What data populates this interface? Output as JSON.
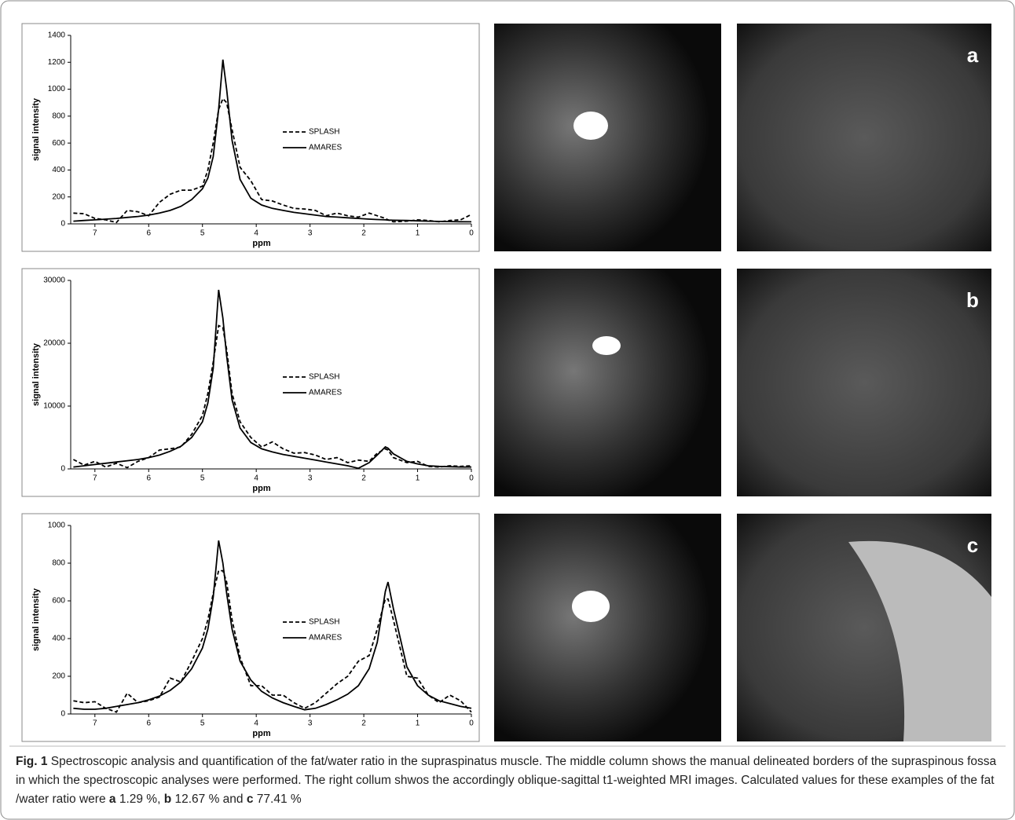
{
  "chart_data": [
    {
      "type": "line",
      "x_label": "ppm",
      "y_label": "signal intensity",
      "x": [
        7.4,
        7.2,
        7.0,
        6.8,
        6.6,
        6.4,
        6.2,
        6.0,
        5.8,
        5.6,
        5.4,
        5.2,
        5.0,
        4.9,
        4.8,
        4.7,
        4.62,
        4.55,
        4.45,
        4.3,
        4.1,
        3.9,
        3.7,
        3.5,
        3.3,
        3.1,
        2.9,
        2.7,
        2.5,
        2.3,
        2.1,
        1.9,
        1.75,
        1.6,
        1.55,
        1.45,
        1.2,
        1.0,
        0.8,
        0.6,
        0.4,
        0.2,
        0.0
      ],
      "xlim": [
        7.45,
        0
      ],
      "xticks": [
        7,
        6,
        5,
        4,
        3,
        2,
        1,
        0
      ],
      "ylim": [
        0,
        1400
      ],
      "yticks": [
        0,
        200,
        400,
        600,
        800,
        1000,
        1200,
        1400
      ],
      "series": [
        {
          "name": "SPLASH",
          "color": "#000000",
          "style": "dashed",
          "values": [
            80,
            75,
            40,
            30,
            10,
            100,
            90,
            60,
            160,
            220,
            250,
            250,
            280,
            400,
            600,
            850,
            930,
            900,
            700,
            420,
            320,
            180,
            170,
            140,
            115,
            110,
            100,
            60,
            80,
            60,
            50,
            80,
            60,
            40,
            30,
            15,
            20,
            30,
            25,
            15,
            25,
            30,
            70
          ]
        },
        {
          "name": "AMARES",
          "color": "#000000",
          "style": "solid",
          "values": [
            20,
            25,
            30,
            35,
            40,
            48,
            55,
            65,
            80,
            100,
            130,
            180,
            260,
            340,
            500,
            850,
            1220,
            1000,
            620,
            330,
            190,
            140,
            115,
            100,
            85,
            75,
            65,
            55,
            50,
            45,
            40,
            35,
            32,
            30,
            28,
            27,
            25,
            22,
            20,
            18,
            17,
            16,
            15
          ]
        }
      ]
    },
    {
      "type": "line",
      "x_label": "ppm",
      "y_label": "signal intensity",
      "x": [
        7.4,
        7.2,
        7.0,
        6.8,
        6.6,
        6.4,
        6.2,
        6.0,
        5.8,
        5.6,
        5.4,
        5.2,
        5.0,
        4.9,
        4.8,
        4.7,
        4.62,
        4.55,
        4.45,
        4.3,
        4.1,
        3.9,
        3.7,
        3.5,
        3.3,
        3.1,
        2.9,
        2.7,
        2.5,
        2.3,
        2.1,
        1.9,
        1.75,
        1.6,
        1.55,
        1.45,
        1.2,
        1.0,
        0.8,
        0.6,
        0.4,
        0.2,
        0.0
      ],
      "xlim": [
        7.45,
        0
      ],
      "xticks": [
        7,
        6,
        5,
        4,
        3,
        2,
        1,
        0
      ],
      "ylim": [
        0,
        30000
      ],
      "yticks": [
        0,
        10000,
        20000,
        30000
      ],
      "series": [
        {
          "name": "SPLASH",
          "color": "#000000",
          "style": "dashed",
          "values": [
            1500,
            600,
            1200,
            300,
            900,
            200,
            1200,
            1800,
            3000,
            3200,
            3500,
            5500,
            8500,
            12000,
            17000,
            22800,
            22500,
            19000,
            12000,
            7500,
            5000,
            3500,
            4300,
            3200,
            2500,
            2600,
            2200,
            1500,
            1800,
            1000,
            1400,
            1200,
            2500,
            3200,
            3000,
            1800,
            1000,
            1200,
            400,
            300,
            500,
            400,
            500
          ]
        },
        {
          "name": "AMARES",
          "color": "#000000",
          "style": "solid",
          "values": [
            300,
            500,
            700,
            900,
            1100,
            1300,
            1500,
            1800,
            2200,
            2800,
            3600,
            5000,
            7500,
            10500,
            16000,
            28500,
            24000,
            18000,
            11000,
            6500,
            4200,
            3200,
            2700,
            2300,
            2000,
            1700,
            1400,
            1100,
            800,
            500,
            100,
            1000,
            2200,
            3500,
            3300,
            2400,
            1200,
            800,
            500,
            400,
            350,
            300,
            300
          ]
        }
      ]
    },
    {
      "type": "line",
      "x_label": "ppm",
      "y_label": "signal intensity",
      "x": [
        7.4,
        7.2,
        7.0,
        6.8,
        6.6,
        6.4,
        6.2,
        6.0,
        5.8,
        5.6,
        5.4,
        5.2,
        5.0,
        4.9,
        4.8,
        4.7,
        4.62,
        4.55,
        4.45,
        4.3,
        4.1,
        3.9,
        3.7,
        3.5,
        3.3,
        3.1,
        2.9,
        2.7,
        2.5,
        2.3,
        2.1,
        1.9,
        1.75,
        1.6,
        1.55,
        1.45,
        1.2,
        1.0,
        0.8,
        0.6,
        0.4,
        0.2,
        0.0
      ],
      "xlim": [
        7.45,
        0
      ],
      "xticks": [
        7,
        6,
        5,
        4,
        3,
        2,
        1,
        0
      ],
      "ylim": [
        0,
        1000
      ],
      "yticks": [
        0,
        200,
        400,
        600,
        800,
        1000
      ],
      "series": [
        {
          "name": "SPLASH",
          "color": "#000000",
          "style": "dashed",
          "values": [
            70,
            60,
            65,
            30,
            10,
            110,
            60,
            70,
            90,
            190,
            170,
            280,
            400,
            500,
            640,
            760,
            760,
            700,
            500,
            300,
            150,
            150,
            100,
            100,
            60,
            30,
            60,
            110,
            160,
            200,
            280,
            310,
            450,
            610,
            610,
            500,
            200,
            190,
            100,
            60,
            100,
            70,
            10
          ]
        },
        {
          "name": "AMARES",
          "color": "#000000",
          "style": "solid",
          "values": [
            30,
            25,
            25,
            30,
            40,
            50,
            60,
            75,
            95,
            125,
            170,
            240,
            350,
            450,
            620,
            920,
            800,
            640,
            450,
            280,
            180,
            120,
            85,
            60,
            40,
            22,
            30,
            50,
            75,
            105,
            150,
            240,
            380,
            650,
            700,
            560,
            250,
            150,
            100,
            70,
            55,
            40,
            30
          ]
        }
      ]
    }
  ],
  "panels": [
    "a",
    "b",
    "c"
  ],
  "caption": {
    "runs": [
      {
        "text": "Fig. 1",
        "bold": true
      },
      {
        "text": " Spectroscopic analysis and quantification of the fat/water ratio in the supraspinatus muscle. The middle column shows the manual delineated borders of the supraspinous fossa in which the spectroscopic analyses were performed. The right collum shwos the accordingly oblique-sagittal t1-weighted MRI images. Calculated values for these examples of the fat /water ratio were ",
        "bold": false
      },
      {
        "text": "a",
        "bold": true
      },
      {
        "text": " 1.29 %, ",
        "bold": false
      },
      {
        "text": "b",
        "bold": true
      },
      {
        "text": " 12.67 % and ",
        "bold": false
      },
      {
        "text": "c",
        "bold": true
      },
      {
        "text": " 77.41 %",
        "bold": false
      }
    ]
  }
}
